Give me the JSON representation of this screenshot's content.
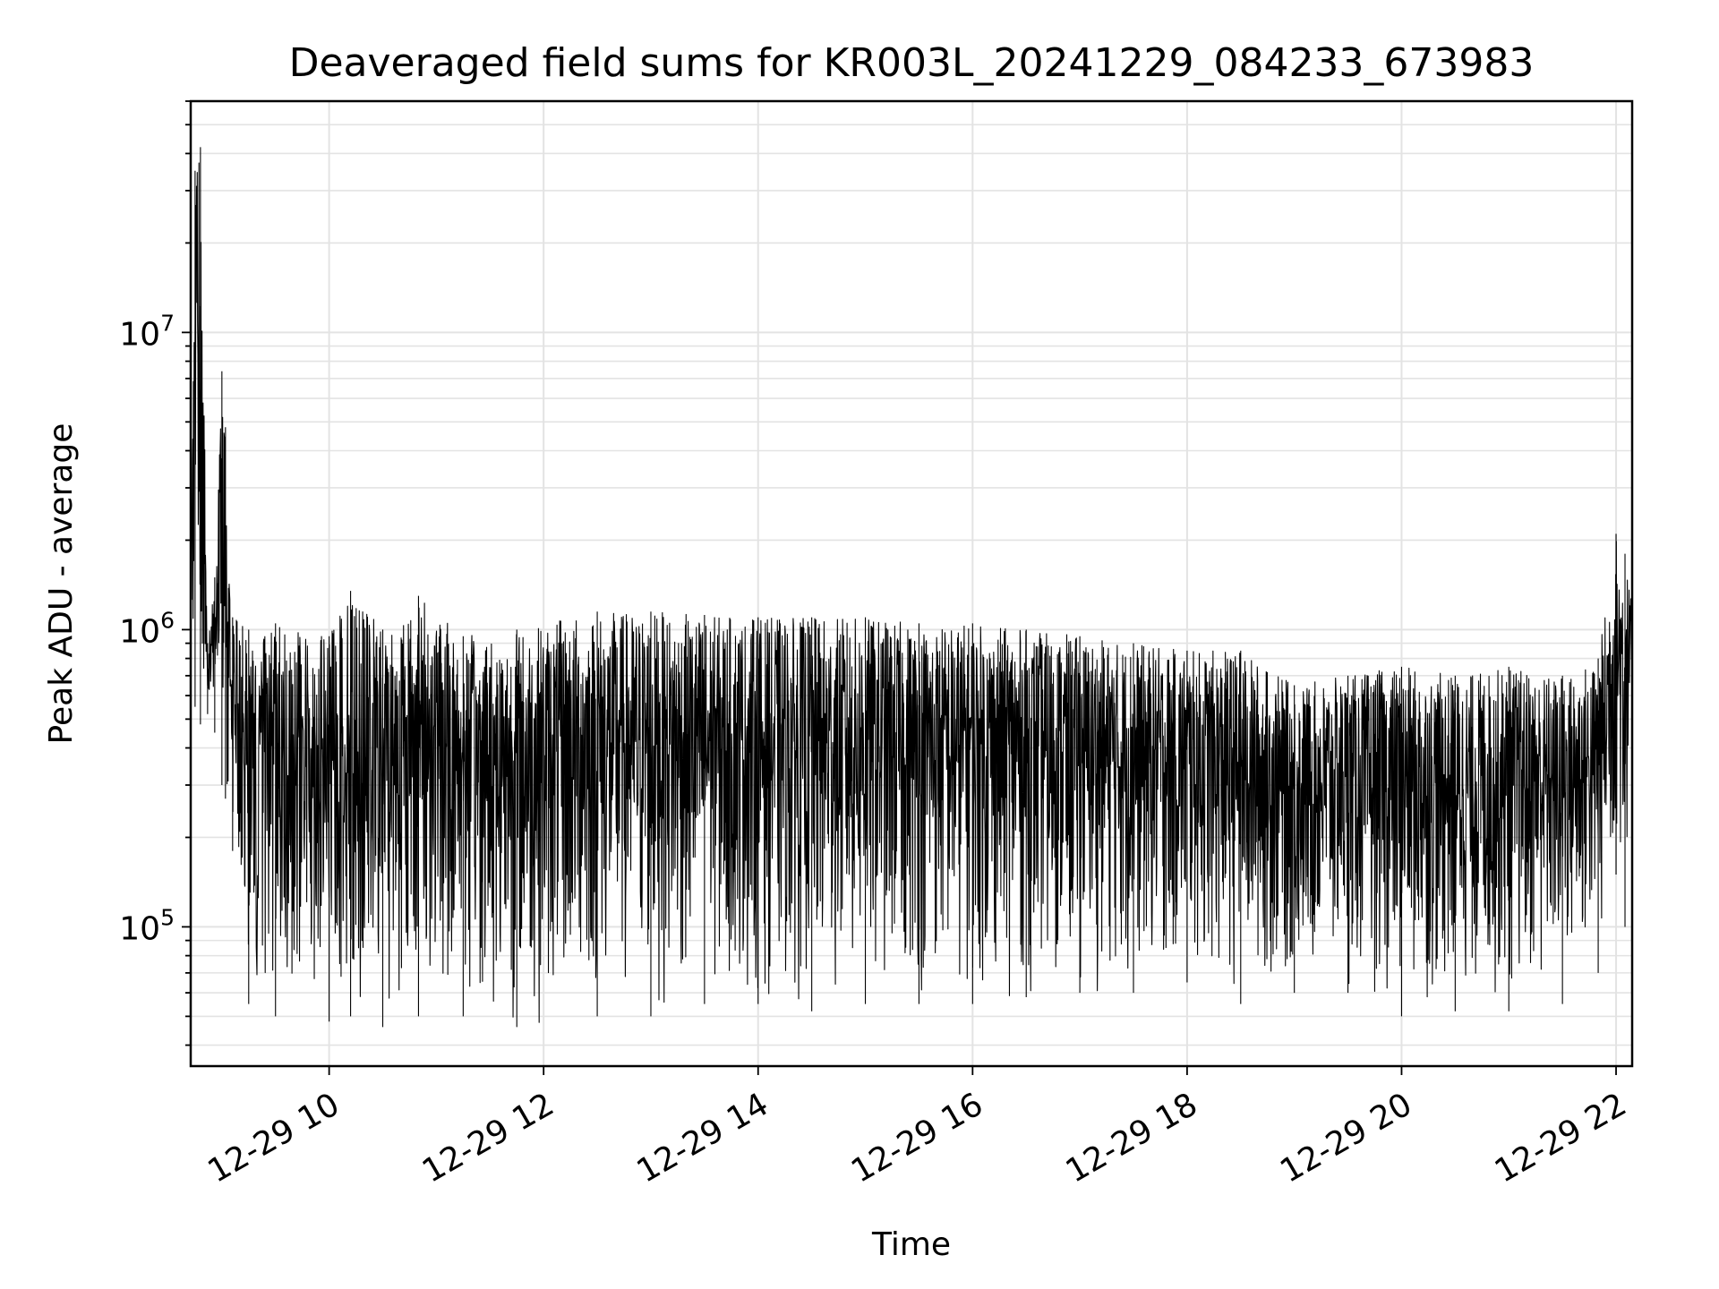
{
  "chart_data": {
    "type": "line",
    "title": "Deaveraged field sums for KR003L_20241229_084233_673983",
    "xlabel": "Time",
    "ylabel": "Peak ADU - average",
    "x_scale": "time",
    "y_scale": "log",
    "grid": true,
    "xlim": [
      "2024-12-29T08:42:33",
      "2024-12-29T22:09:00"
    ],
    "ylim": [
      34000,
      60000000
    ],
    "x_ticks": [
      {
        "value": "2024-12-29T10:00:00",
        "label": "12-29 10"
      },
      {
        "value": "2024-12-29T12:00:00",
        "label": "12-29 12"
      },
      {
        "value": "2024-12-29T14:00:00",
        "label": "12-29 14"
      },
      {
        "value": "2024-12-29T16:00:00",
        "label": "12-29 16"
      },
      {
        "value": "2024-12-29T18:00:00",
        "label": "12-29 18"
      },
      {
        "value": "2024-12-29T20:00:00",
        "label": "12-29 20"
      },
      {
        "value": "2024-12-29T22:00:00",
        "label": "12-29 22"
      }
    ],
    "y_ticks": [
      {
        "value": 100000,
        "base": "10",
        "exp": "5"
      },
      {
        "value": 1000000,
        "base": "10",
        "exp": "6"
      },
      {
        "value": 10000000,
        "base": "10",
        "exp": "7"
      }
    ],
    "series": [
      {
        "color": "#000000",
        "envelope": [
          {
            "t": "2024-12-29T08:42:33",
            "low": 600000,
            "high": 1200000
          },
          {
            "t": "2024-12-29T08:45:00",
            "low": 550000,
            "high": 35000000
          },
          {
            "t": "2024-12-29T08:48:00",
            "low": 480000,
            "high": 42000000
          },
          {
            "t": "2024-12-29T08:52:00",
            "low": 520000,
            "high": 900000
          },
          {
            "t": "2024-12-29T08:56:00",
            "low": 450000,
            "high": 1500000
          },
          {
            "t": "2024-12-29T09:00:00",
            "low": 300000,
            "high": 7400000
          },
          {
            "t": "2024-12-29T09:02:00",
            "low": 270000,
            "high": 4800000
          },
          {
            "t": "2024-12-29T09:06:00",
            "low": 180000,
            "high": 1100000
          },
          {
            "t": "2024-12-29T09:15:00",
            "low": 55000,
            "high": 1000000
          },
          {
            "t": "2024-12-29T09:30:00",
            "low": 50000,
            "high": 1050000
          },
          {
            "t": "2024-12-29T10:00:00",
            "low": 48000,
            "high": 950000
          },
          {
            "t": "2024-12-29T10:12:00",
            "low": 50000,
            "high": 1350000
          },
          {
            "t": "2024-12-29T10:30:00",
            "low": 46000,
            "high": 1000000
          },
          {
            "t": "2024-12-29T10:50:00",
            "low": 50000,
            "high": 1300000
          },
          {
            "t": "2024-12-29T11:15:00",
            "low": 50000,
            "high": 950000
          },
          {
            "t": "2024-12-29T11:45:00",
            "low": 46000,
            "high": 1000000
          },
          {
            "t": "2024-12-29T12:30:00",
            "low": 50000,
            "high": 1150000
          },
          {
            "t": "2024-12-29T13:00:00",
            "low": 50000,
            "high": 1150000
          },
          {
            "t": "2024-12-29T13:30:00",
            "low": 55000,
            "high": 1120000
          },
          {
            "t": "2024-12-29T14:00:00",
            "low": 55000,
            "high": 1100000
          },
          {
            "t": "2024-12-29T14:30:00",
            "low": 52000,
            "high": 1100000
          },
          {
            "t": "2024-12-29T15:00:00",
            "low": 55000,
            "high": 1100000
          },
          {
            "t": "2024-12-29T15:30:00",
            "low": 55000,
            "high": 1050000
          },
          {
            "t": "2024-12-29T16:00:00",
            "low": 55000,
            "high": 1050000
          },
          {
            "t": "2024-12-29T16:30:00",
            "low": 58000,
            "high": 1000000
          },
          {
            "t": "2024-12-29T17:00:00",
            "low": 60000,
            "high": 950000
          },
          {
            "t": "2024-12-29T17:30:00",
            "low": 60000,
            "high": 900000
          },
          {
            "t": "2024-12-29T18:00:00",
            "low": 65000,
            "high": 850000
          },
          {
            "t": "2024-12-29T18:30:00",
            "low": 55000,
            "high": 850000
          },
          {
            "t": "2024-12-29T19:00:00",
            "low": 60000,
            "high": 650000
          },
          {
            "t": "2024-12-29T19:30:00",
            "low": 60000,
            "high": 700000
          },
          {
            "t": "2024-12-29T20:00:00",
            "low": 50000,
            "high": 750000
          },
          {
            "t": "2024-12-29T20:30:00",
            "low": 52000,
            "high": 700000
          },
          {
            "t": "2024-12-29T21:00:00",
            "low": 52000,
            "high": 750000
          },
          {
            "t": "2024-12-29T21:30:00",
            "low": 55000,
            "high": 700000
          },
          {
            "t": "2024-12-29T21:50:00",
            "low": 70000,
            "high": 800000
          },
          {
            "t": "2024-12-29T22:00:00",
            "low": 150000,
            "high": 2100000
          },
          {
            "t": "2024-12-29T22:05:00",
            "low": 100000,
            "high": 1800000
          },
          {
            "t": "2024-12-29T22:09:00",
            "low": 500000,
            "high": 1200000
          }
        ]
      }
    ]
  }
}
